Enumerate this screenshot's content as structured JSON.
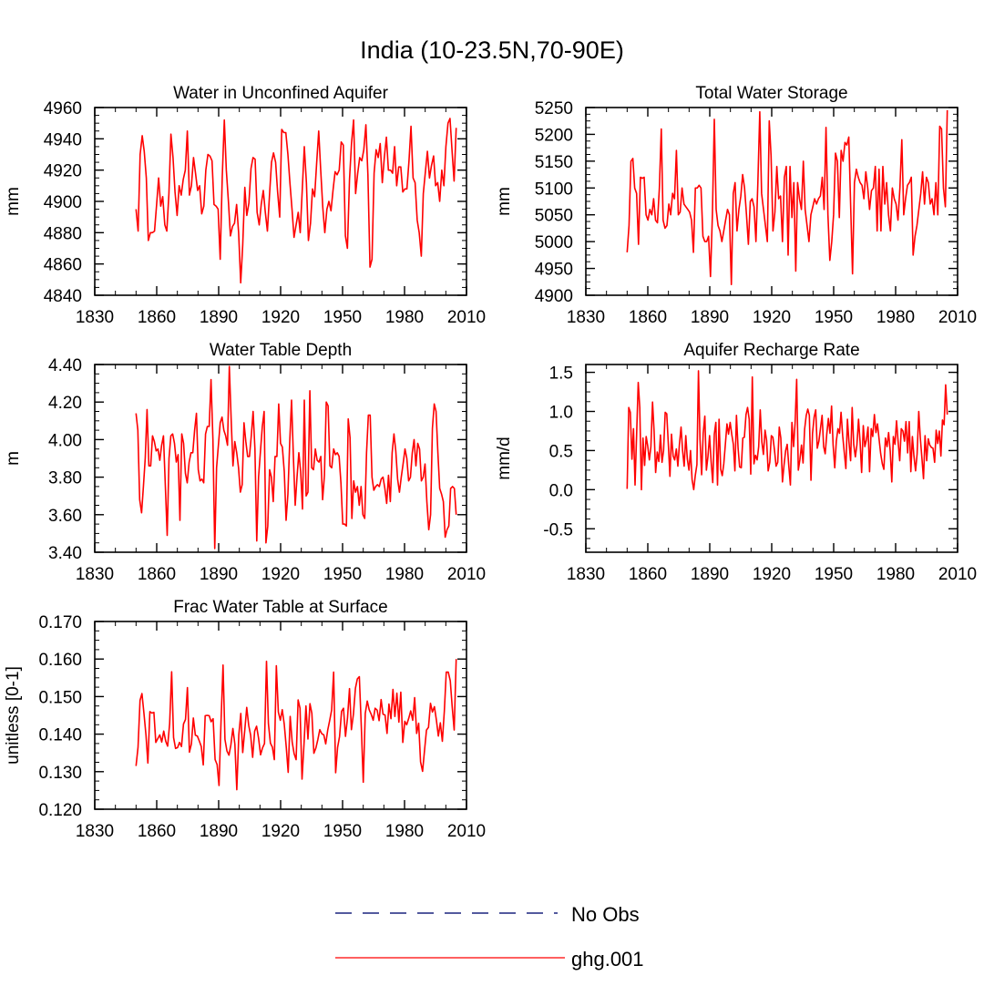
{
  "figure": {
    "title": "India (10-23.5N,70-90E)"
  },
  "legend": [
    {
      "label": "No Obs",
      "color": "#1a237e",
      "style": "dashed"
    },
    {
      "label": "ghg.001",
      "color": "#ff0000",
      "style": "solid"
    }
  ],
  "chart_data": [
    {
      "type": "line",
      "title": "Water in Unconfined Aquifer",
      "ylabel": "mm",
      "xlim": [
        1830,
        2010
      ],
      "ylim": [
        4840,
        4960
      ],
      "xticks": [
        1830,
        1860,
        1890,
        1920,
        1950,
        1980,
        2010
      ],
      "yticks": [
        4840,
        4860,
        4880,
        4900,
        4920,
        4940,
        4960
      ],
      "ytick_labels": [
        "4840",
        "4860",
        "4880",
        "4900",
        "4920",
        "4940",
        "4960"
      ],
      "series": [
        {
          "name": "ghg.001",
          "x_start": 1850,
          "values": [
            4895,
            4881,
            4930,
            4942,
            4932,
            4915,
            4875,
            4880,
            4880,
            4881,
            4898,
            4915,
            4897,
            4903,
            4885,
            4881,
            4905,
            4943,
            4928,
            4906,
            4891,
            4910,
            4904,
            4914,
            4920,
            4945,
            4904,
            4910,
            4928,
            4918,
            4907,
            4910,
            4892,
            4897,
            4920,
            4930,
            4929,
            4926,
            4898,
            4897,
            4895,
            4863,
            4915,
            4952,
            4920,
            4900,
            4878,
            4884,
            4886,
            4898,
            4880,
            4848,
            4872,
            4909,
            4891,
            4899,
            4921,
            4928,
            4927,
            4893,
            4885,
            4898,
            4907,
            4893,
            4881,
            4903,
            4925,
            4931,
            4925,
            4906,
            4890,
            4946,
            4944,
            4944,
            4930,
            4912,
            4895,
            4877,
            4885,
            4893,
            4880,
            4908,
            4935,
            4912,
            4875,
            4886,
            4908,
            4903,
            4924,
            4945,
            4920,
            4896,
            4880,
            4895,
            4900,
            4894,
            4907,
            4919,
            4917,
            4920,
            4938,
            4936,
            4878,
            4870,
            4914,
            4937,
            4952,
            4905,
            4918,
            4928,
            4926,
            4933,
            4949,
            4917,
            4858,
            4863,
            4918,
            4933,
            4928,
            4937,
            4912,
            4928,
            4941,
            4920,
            4920,
            4918,
            4935,
            4910,
            4922,
            4922,
            4906,
            4908,
            4908,
            4926,
            4948,
            4915,
            4912,
            4888,
            4880,
            4865,
            4905,
            4919,
            4932,
            4915,
            4923,
            4929,
            4910,
            4912,
            4900,
            4920,
            4910,
            4935,
            4950,
            4953,
            4932,
            4913,
            4947
          ]
        }
      ]
    },
    {
      "type": "line",
      "title": "Total Water Storage",
      "ylabel": "mm",
      "xlim": [
        1830,
        2010
      ],
      "ylim": [
        4900,
        5250
      ],
      "xticks": [
        1830,
        1860,
        1890,
        1920,
        1950,
        1980,
        2010
      ],
      "yticks": [
        4900,
        4950,
        5000,
        5050,
        5100,
        5150,
        5200,
        5250
      ],
      "ytick_labels": [
        "4900",
        "4950",
        "5000",
        "5050",
        "5100",
        "5150",
        "5200",
        "5250"
      ],
      "series": [
        {
          "name": "ghg.001",
          "x_start": 1850,
          "values": [
            4980,
            5030,
            5150,
            5155,
            5100,
            5090,
            4995,
            5120,
            5118,
            5120,
            5050,
            5040,
            5060,
            5050,
            5080,
            5040,
            5035,
            5100,
            5210,
            5040,
            5025,
            5030,
            5070,
            5050,
            5090,
            5080,
            5170,
            5050,
            5055,
            5100,
            5070,
            5065,
            5060,
            5055,
            5040,
            4980,
            5100,
            5100,
            5105,
            5100,
            5010,
            5000,
            5000,
            5010,
            4935,
            5050,
            5228,
            5060,
            5030,
            5020,
            5000,
            5020,
            5040,
            5060,
            5050,
            4920,
            5090,
            5110,
            5020,
            5060,
            5085,
            5125,
            5100,
            5050,
            4995,
            5075,
            5080,
            5065,
            5000,
            5110,
            5242,
            5090,
            5060,
            5030,
            5000,
            5225,
            5160,
            5020,
            5055,
            5140,
            5080,
            5085,
            5000,
            5120,
            5140,
            4975,
            5140,
            5045,
            5110,
            4945,
            5110,
            5080,
            5060,
            5150,
            5060,
            5030,
            5000,
            5050,
            5065,
            5080,
            5070,
            5080,
            5085,
            5120,
            5060,
            5213,
            5050,
            4965,
            5000,
            5050,
            5165,
            5150,
            5045,
            5170,
            5150,
            5185,
            5180,
            5195,
            5070,
            4940,
            5110,
            5135,
            5120,
            5110,
            5105,
            5080,
            5130,
            5100,
            5060,
            5095,
            5100,
            5140,
            5020,
            5135,
            5020,
            5140,
            5070,
            5110,
            5050,
            5020,
            5100,
            5080,
            5070,
            5040,
            5100,
            5190,
            5050,
            5080,
            5105,
            5110,
            5120,
            4975,
            5010,
            5030,
            5060,
            5090,
            5130,
            5070,
            5120,
            5110,
            5070,
            5080,
            5050,
            5110,
            5050,
            5215,
            5210,
            5100,
            5065,
            5245
          ]
        }
      ]
    },
    {
      "type": "line",
      "title": "Water Table Depth",
      "ylabel": "m",
      "xlim": [
        1830,
        2010
      ],
      "ylim": [
        3.4,
        4.4
      ],
      "xticks": [
        1830,
        1860,
        1890,
        1920,
        1950,
        1980,
        2010
      ],
      "yticks": [
        3.4,
        3.6,
        3.8,
        4.0,
        4.2,
        4.4
      ],
      "ytick_labels": [
        "3.40",
        "3.60",
        "3.80",
        "4.00",
        "4.20",
        "4.40"
      ],
      "series": [
        {
          "name": "ghg.001",
          "x_start": 1850,
          "values": [
            4.14,
            4.05,
            3.68,
            3.61,
            3.75,
            3.9,
            4.16,
            3.86,
            3.86,
            4.02,
            3.99,
            3.94,
            3.95,
            3.89,
            3.97,
            4.02,
            3.75,
            3.49,
            3.9,
            4.02,
            4.03,
            3.98,
            3.88,
            3.92,
            3.57,
            4.03,
            3.98,
            3.82,
            3.77,
            3.88,
            3.93,
            3.93,
            4.05,
            4.14,
            3.84,
            3.78,
            3.79,
            3.77,
            4.03,
            4.07,
            4.07,
            4.32,
            4.0,
            3.42,
            3.85,
            3.97,
            4.09,
            4.12,
            4.05,
            4.02,
            3.97,
            4.39,
            4.11,
            3.86,
            3.99,
            3.93,
            3.85,
            3.72,
            3.76,
            4.09,
            3.99,
            3.91,
            3.91,
            4.02,
            4.15,
            3.95,
            3.46,
            3.8,
            3.94,
            4.07,
            4.15,
            3.45,
            3.54,
            3.84,
            3.8,
            3.67,
            3.91,
            3.91,
            4.19,
            3.98,
            3.96,
            3.83,
            3.57,
            3.71,
            3.99,
            4.21,
            3.91,
            3.65,
            3.8,
            3.93,
            3.83,
            3.63,
            4.21,
            3.7,
            3.72,
            4.26,
            3.85,
            3.84,
            3.95,
            3.89,
            3.88,
            3.91,
            3.68,
            3.81,
            4.2,
            4.18,
            3.86,
            3.85,
            3.95,
            3.92,
            3.93,
            3.91,
            3.77,
            3.55,
            3.55,
            3.54,
            4.11,
            4.01,
            3.58,
            3.78,
            3.72,
            3.75,
            3.65,
            3.75,
            3.6,
            3.58,
            3.93,
            4.13,
            4.13,
            3.8,
            3.73,
            3.75,
            3.76,
            3.75,
            3.79,
            3.8,
            3.74,
            3.66,
            3.81,
            3.67,
            3.93,
            4.03,
            3.94,
            3.79,
            3.72,
            3.8,
            3.87,
            3.95,
            3.9,
            3.78,
            3.8,
            3.93,
            4.0,
            3.86,
            3.98,
            3.95,
            3.78,
            3.8,
            3.87,
            3.67,
            3.52,
            3.6,
            4.06,
            4.19,
            4.15,
            3.93,
            3.74,
            3.71,
            3.67,
            3.48,
            3.52,
            3.54,
            3.74,
            3.75,
            3.74,
            3.6
          ]
        }
      ]
    },
    {
      "type": "line",
      "title": "Aquifer Recharge Rate",
      "ylabel": "mm/d",
      "xlim": [
        1830,
        2010
      ],
      "ylim": [
        -0.8,
        1.6
      ],
      "xticks": [
        1830,
        1860,
        1890,
        1920,
        1950,
        1980,
        2010
      ],
      "yticks": [
        -0.5,
        0.0,
        0.5,
        1.0,
        1.5
      ],
      "ytick_labels": [
        "-0.5",
        "0.0",
        "0.5",
        "1.0",
        "1.5"
      ],
      "series": [
        {
          "name": "ghg.001",
          "x_start": 1850,
          "values": [
            0.01,
            1.05,
            0.99,
            0.39,
            0.78,
            0.06,
            0.73,
            1.37,
            1.05,
            0.0,
            0.66,
            0.31,
            0.68,
            0.56,
            0.38,
            0.55,
            1.12,
            0.75,
            0.22,
            0.48,
            0.36,
            0.7,
            0.35,
            0.5,
            0.99,
            0.97,
            0.57,
            0.17,
            0.71,
            0.43,
            0.38,
            0.52,
            0.3,
            0.58,
            0.8,
            0.5,
            0.3,
            0.69,
            0.39,
            0.25,
            0.5,
            0.13,
            0.0,
            0.18,
            0.32,
            1.52,
            0.64,
            0.19,
            0.72,
            0.94,
            0.25,
            0.42,
            0.69,
            0.36,
            0.09,
            0.71,
            0.86,
            0.06,
            0.9,
            0.26,
            0.18,
            0.33,
            0.59,
            0.84,
            0.71,
            0.86,
            0.71,
            0.58,
            0.24,
            0.95,
            0.53,
            0.29,
            0.28,
            0.66,
            0.67,
            0.96,
            1.05,
            0.9,
            0.2,
            1.44,
            0.33,
            0.44,
            0.38,
            0.55,
            1.02,
            0.61,
            0.45,
            0.76,
            0.63,
            0.24,
            0.35,
            0.69,
            0.67,
            0.5,
            0.3,
            0.35,
            0.8,
            0.66,
            0.1,
            0.31,
            0.5,
            0.58,
            0.31,
            0.06,
            0.86,
            0.55,
            0.86,
            1.41,
            0.25,
            0.38,
            0.57,
            0.34,
            0.77,
            0.95,
            1.03,
            0.95,
            0.12,
            0.72,
            0.93,
            1.02,
            0.53,
            0.62,
            0.78,
            0.95,
            0.55,
            0.46,
            0.72,
            0.91,
            0.72,
            1.07,
            0.57,
            0.28,
            0.62,
            0.78,
            0.72,
            0.99,
            0.69,
            0.48,
            0.27,
            0.9,
            0.61,
            0.37,
            1.05,
            0.58,
            0.42,
            0.57,
            0.9,
            0.61,
            0.22,
            0.82,
            0.55,
            0.64,
            0.8,
            0.23,
            0.78,
            0.68,
            0.96,
            0.73,
            0.84,
            0.64,
            0.46,
            0.33,
            0.26,
            0.66,
            0.55,
            0.73,
            0.49,
            0.1,
            0.68,
            0.58,
            0.88,
            0.62,
            0.37,
            0.78,
            0.75,
            0.62,
            0.87,
            0.47,
            0.87,
            0.23,
            0.68,
            0.43,
            0.24,
            0.46,
            1.0,
            0.66,
            0.41,
            0.14,
            0.69,
            0.37,
            0.65,
            0.57,
            0.54,
            0.53,
            0.35,
            0.76,
            0.59,
            0.75,
            0.43,
            0.89,
            0.83,
            1.34,
            0.96
          ]
        }
      ]
    },
    {
      "type": "line",
      "title": "Frac Water Table at Surface",
      "ylabel": "unitless [0-1]",
      "xlim": [
        1830,
        2010
      ],
      "ylim": [
        0.12,
        0.17
      ],
      "xticks": [
        1830,
        1860,
        1890,
        1920,
        1950,
        1980,
        2010
      ],
      "yticks": [
        0.12,
        0.13,
        0.14,
        0.15,
        0.16,
        0.17
      ],
      "ytick_labels": [
        "0.120",
        "0.130",
        "0.140",
        "0.150",
        "0.160",
        "0.170"
      ],
      "series": [
        {
          "name": "ghg.001",
          "x_start": 1850,
          "values": [
            0.1315,
            0.1365,
            0.149,
            0.1508,
            0.1455,
            0.1398,
            0.1323,
            0.146,
            0.1456,
            0.1458,
            0.1378,
            0.1388,
            0.1398,
            0.1379,
            0.1408,
            0.1381,
            0.1368,
            0.1428,
            0.1566,
            0.1391,
            0.1362,
            0.1364,
            0.1378,
            0.1367,
            0.1427,
            0.1439,
            0.1524,
            0.1352,
            0.1374,
            0.1443,
            0.1397,
            0.1395,
            0.1382,
            0.1367,
            0.1318,
            0.1449,
            0.145,
            0.1449,
            0.1433,
            0.1441,
            0.1332,
            0.1319,
            0.1263,
            0.1434,
            0.1584,
            0.1386,
            0.1355,
            0.1344,
            0.1371,
            0.1415,
            0.1373,
            0.1252,
            0.1398,
            0.1455,
            0.1351,
            0.1409,
            0.1471,
            0.1423,
            0.1397,
            0.1338,
            0.1408,
            0.1421,
            0.1389,
            0.1345,
            0.1363,
            0.1375,
            0.1594,
            0.1428,
            0.1376,
            0.1365,
            0.1332,
            0.1582,
            0.1459,
            0.1437,
            0.1465,
            0.1426,
            0.1365,
            0.1298,
            0.1447,
            0.1379,
            0.1348,
            0.1332,
            0.1491,
            0.1469,
            0.128,
            0.1375,
            0.1475,
            0.1387,
            0.1481,
            0.1455,
            0.1349,
            0.1363,
            0.1386,
            0.1412,
            0.1401,
            0.1398,
            0.1374,
            0.1411,
            0.1437,
            0.1464,
            0.1565,
            0.1297,
            0.1364,
            0.1394,
            0.1461,
            0.1469,
            0.1394,
            0.1443,
            0.1521,
            0.1412,
            0.1453,
            0.1522,
            0.1547,
            0.1553,
            0.1417,
            0.1272,
            0.1455,
            0.1488,
            0.1465,
            0.1453,
            0.1437,
            0.1469,
            0.1464,
            0.1436,
            0.1492,
            0.1453,
            0.1451,
            0.1402,
            0.148,
            0.1441,
            0.1519,
            0.1447,
            0.1509,
            0.1432,
            0.1512,
            0.1378,
            0.1434,
            0.1425,
            0.1442,
            0.1462,
            0.1437,
            0.1497,
            0.1402,
            0.1429,
            0.1326,
            0.1301,
            0.1358,
            0.1411,
            0.1418,
            0.1482,
            0.1459,
            0.1473,
            0.1437,
            0.1395,
            0.143,
            0.1381,
            0.1462,
            0.1565,
            0.1565,
            0.1542,
            0.1473,
            0.1411,
            0.16
          ]
        }
      ]
    }
  ]
}
